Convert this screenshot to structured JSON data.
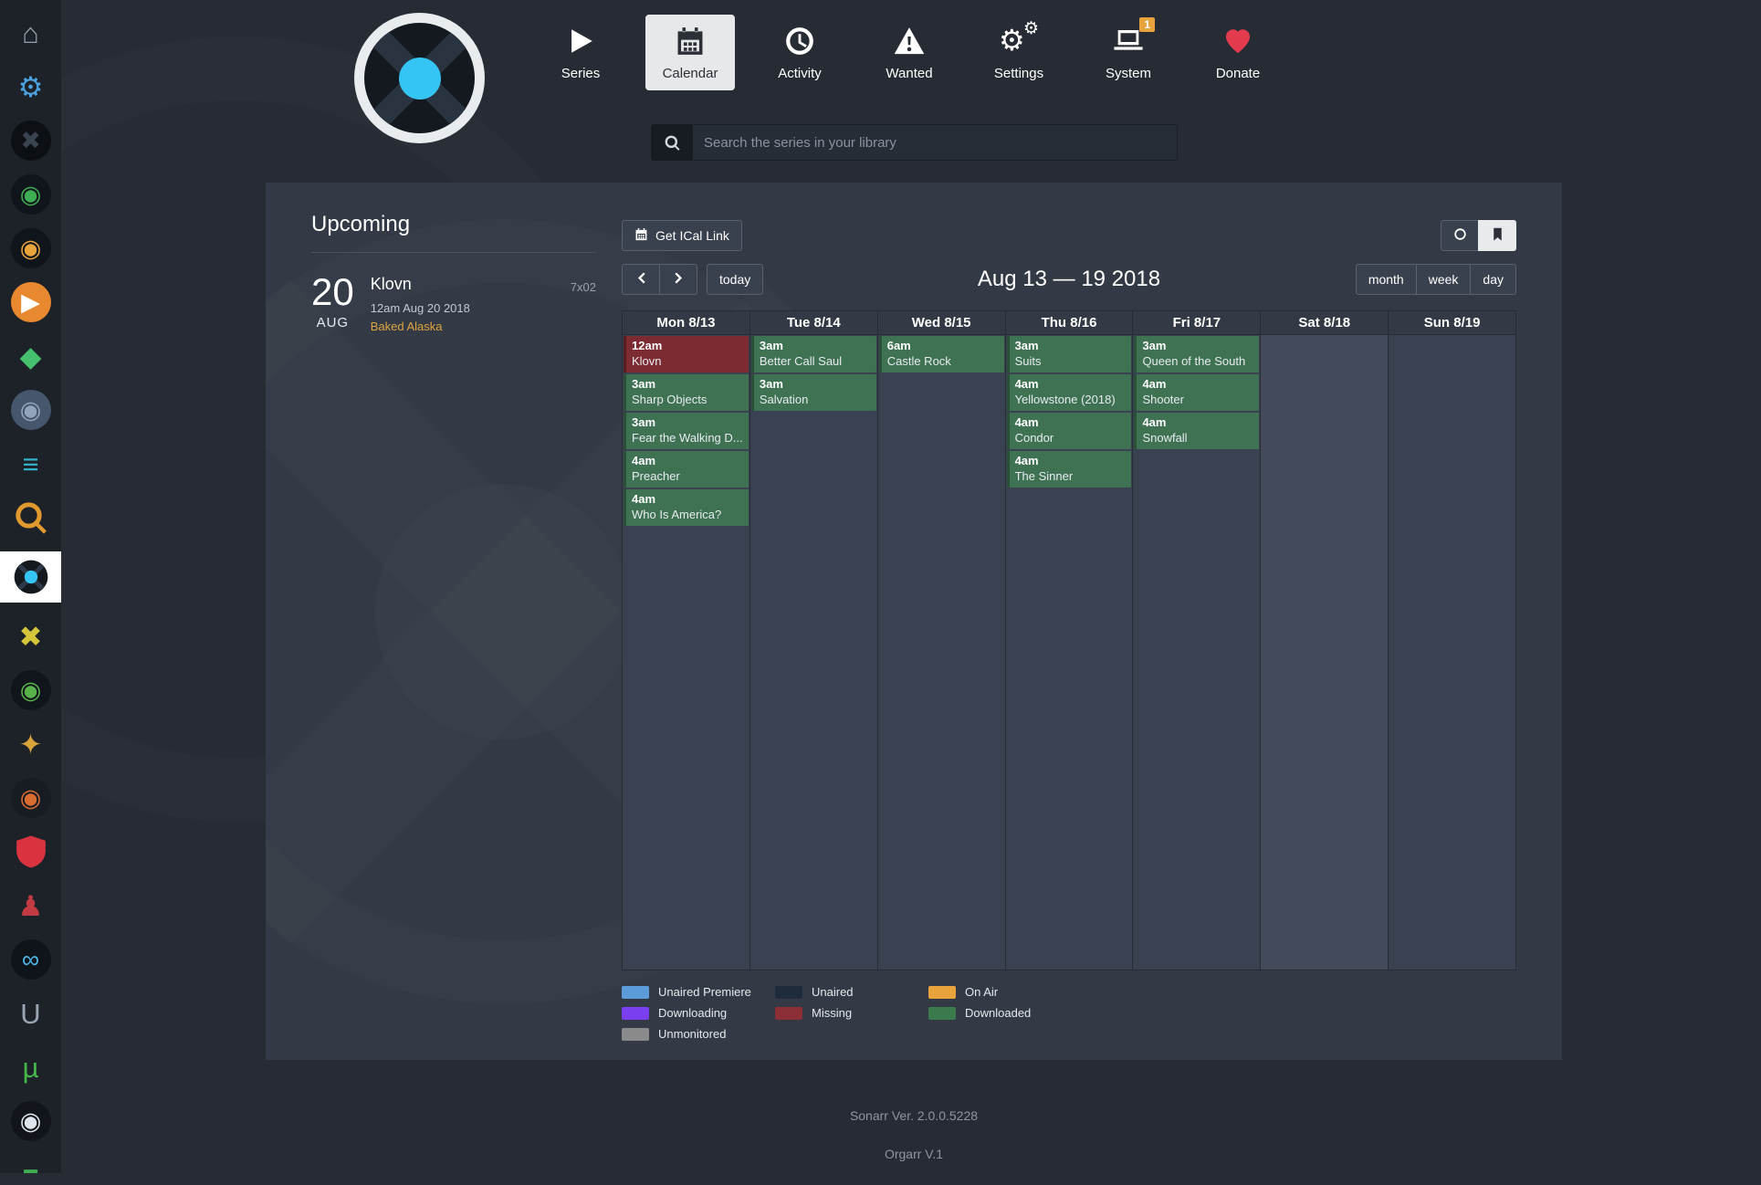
{
  "app": {
    "footer_line1": "Sonarr Ver. 2.0.0.5228",
    "footer_line2": "Orgarr V.1"
  },
  "sidebar": {
    "items": [
      {
        "name": "home-icon",
        "glyph": "⌂",
        "fg": "#99a2ae"
      },
      {
        "name": "gear-icon",
        "glyph": "⚙",
        "fg": "#4aa3e0"
      },
      {
        "name": "organizr-x-icon",
        "glyph": "✖",
        "fg": "#3a4350",
        "bg": "#0c0f14"
      },
      {
        "name": "green-ring-app-icon",
        "glyph": "◉",
        "fg": "#3fae52",
        "bg": "#10151c"
      },
      {
        "name": "orange-ring-app-icon",
        "glyph": "◉",
        "fg": "#e8a33d",
        "bg": "#10151c"
      },
      {
        "name": "orange-play-app-icon",
        "glyph": "▶",
        "fg": "#ffffff",
        "bg": "#e8882f"
      },
      {
        "name": "green-diamond-app-icon",
        "glyph": "◆",
        "fg": "#46c06e"
      },
      {
        "name": "camera-app-icon",
        "glyph": "◉",
        "fg": "#93a5bd",
        "bg": "#46566c"
      },
      {
        "name": "soundbars-app-icon",
        "glyph": "≡",
        "fg": "#35b0c9"
      },
      {
        "name": "search-app-icon",
        "svg": "search",
        "fg": "#e0992f"
      },
      {
        "name": "sonarr-icon",
        "svg": "sonarr",
        "selected": true
      },
      {
        "name": "yellow-x-app-icon",
        "glyph": "✖",
        "fg": "#d4c53a"
      },
      {
        "name": "green-circle-app-icon",
        "glyph": "◉",
        "fg": "#58b34b",
        "bg": "#10151c"
      },
      {
        "name": "gold-star-app-icon",
        "glyph": "✦",
        "fg": "#d9a43a"
      },
      {
        "name": "orange-swirl-app-icon",
        "glyph": "◉",
        "fg": "#d96c2f",
        "bg": "#171c23"
      },
      {
        "name": "red-shield-app-icon",
        "svg": "shield",
        "fg": "#d8333f"
      },
      {
        "name": "red-cluster-app-icon",
        "glyph": "♟",
        "fg": "#c23a42"
      },
      {
        "name": "blue-ombi-app-icon",
        "glyph": "∞",
        "fg": "#4db5e6",
        "bg": "#0f141b"
      },
      {
        "name": "gray-u-app-icon",
        "glyph": "U",
        "fg": "#9aa4b2"
      },
      {
        "name": "utorrent-app-icon",
        "glyph": "µ",
        "fg": "#46b54a"
      },
      {
        "name": "dark-eye-app-icon",
        "glyph": "◉",
        "fg": "#dfe5ec",
        "bg": "#11151b"
      },
      {
        "name": "green-square-app-icon",
        "glyph": "■",
        "fg": "#3fae52"
      }
    ]
  },
  "header": {
    "nav": [
      {
        "id": "series",
        "label": "Series",
        "icon": "play"
      },
      {
        "id": "calendar",
        "label": "Calendar",
        "icon": "calendar",
        "active": true
      },
      {
        "id": "activity",
        "label": "Activity",
        "icon": "clock"
      },
      {
        "id": "wanted",
        "label": "Wanted",
        "icon": "warning"
      },
      {
        "id": "settings",
        "label": "Settings",
        "icon": "gears"
      },
      {
        "id": "system",
        "label": "System",
        "icon": "laptop",
        "badge": "1"
      },
      {
        "id": "donate",
        "label": "Donate",
        "icon": "heart",
        "icon_color": "#e23b4e"
      }
    ],
    "search": {
      "placeholder": "Search the series in your library"
    }
  },
  "upcoming": {
    "heading": "Upcoming",
    "event": {
      "day": "20",
      "month": "AUG",
      "series": "Klovn",
      "air_date": "12am Aug 20 2018",
      "episode_title": "Baked Alaska",
      "episode": "7x02"
    }
  },
  "calendar": {
    "ical_label": "Get ICal Link",
    "today_label": "today",
    "range_title": "Aug 13 — 19 2018",
    "views": [
      "month",
      "week",
      "day"
    ],
    "status_colors": {
      "downloaded": "#3e7253",
      "missing": "#7c2b33"
    },
    "days": [
      {
        "label": "Mon 8/13",
        "weekend": false,
        "events": [
          {
            "time": "12am",
            "title": "Klovn",
            "status": "missing"
          },
          {
            "time": "3am",
            "title": "Sharp Objects",
            "status": "downloaded"
          },
          {
            "time": "3am",
            "title": "Fear the Walking D...",
            "status": "downloaded"
          },
          {
            "time": "4am",
            "title": "Preacher",
            "status": "downloaded"
          },
          {
            "time": "4am",
            "title": "Who Is America?",
            "status": "downloaded"
          }
        ]
      },
      {
        "label": "Tue 8/14",
        "weekend": false,
        "events": [
          {
            "time": "3am",
            "title": "Better Call Saul",
            "status": "downloaded"
          },
          {
            "time": "3am",
            "title": "Salvation",
            "status": "downloaded"
          }
        ]
      },
      {
        "label": "Wed 8/15",
        "weekend": false,
        "events": [
          {
            "time": "6am",
            "title": "Castle Rock",
            "status": "downloaded"
          }
        ]
      },
      {
        "label": "Thu 8/16",
        "weekend": false,
        "events": [
          {
            "time": "3am",
            "title": "Suits",
            "status": "downloaded"
          },
          {
            "time": "4am",
            "title": "Yellowstone (2018)",
            "status": "downloaded"
          },
          {
            "time": "4am",
            "title": "Condor",
            "status": "downloaded"
          },
          {
            "time": "4am",
            "title": "The Sinner",
            "status": "downloaded"
          }
        ]
      },
      {
        "label": "Fri 8/17",
        "weekend": false,
        "events": [
          {
            "time": "3am",
            "title": "Queen of the South",
            "status": "downloaded"
          },
          {
            "time": "4am",
            "title": "Shooter",
            "status": "downloaded"
          },
          {
            "time": "4am",
            "title": "Snowfall",
            "status": "downloaded"
          }
        ]
      },
      {
        "label": "Sat 8/18",
        "weekend": true,
        "events": []
      },
      {
        "label": "Sun 8/19",
        "weekend": false,
        "events": []
      }
    ],
    "legend_columns": [
      [
        {
          "label": "Unaired Premiere",
          "color": "#5b9bd9"
        },
        {
          "label": "Downloading",
          "color": "#7a3ff0"
        },
        {
          "label": "Unmonitored",
          "color": "#8a8a8a"
        }
      ],
      [
        {
          "label": "Unaired",
          "color": "#1f2a3a"
        },
        {
          "label": "Missing",
          "color": "#8b2e35"
        }
      ],
      [
        {
          "label": "On Air",
          "color": "#e8a33d"
        },
        {
          "label": "Downloaded",
          "color": "#3a7a4d"
        }
      ]
    ]
  }
}
